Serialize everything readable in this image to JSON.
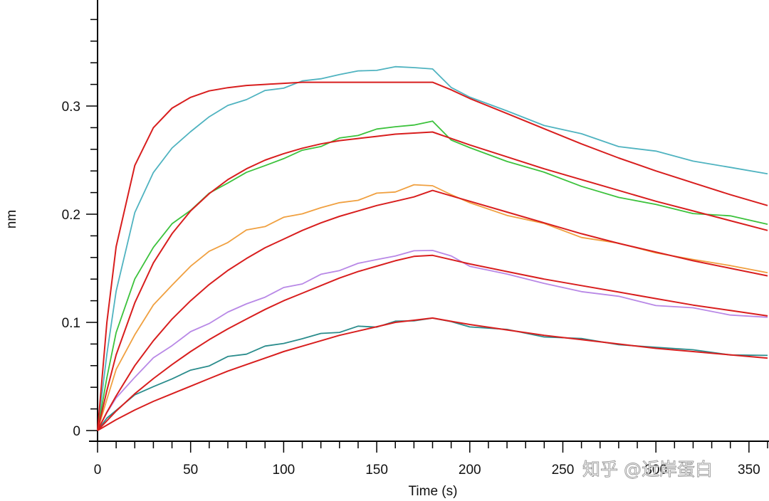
{
  "chart_data": {
    "type": "line",
    "title": "",
    "xlabel": "Time (s)",
    "ylabel": "nm",
    "xlim": [
      0,
      360
    ],
    "ylim": [
      -0.01,
      0.4
    ],
    "x_ticks": [
      0,
      50,
      100,
      150,
      200,
      250,
      300,
      350
    ],
    "x_tick_labels": [
      "0",
      "50",
      "100",
      "150",
      "200",
      "250",
      "300",
      "350"
    ],
    "y_ticks": [
      0,
      0.1,
      0.2,
      0.3
    ],
    "y_tick_labels": [
      "0",
      "0.1",
      "0.2",
      "0.3"
    ],
    "association_end_s": 180,
    "grid": false,
    "legend": "none",
    "series": [
      {
        "name": "measured-1",
        "role": "measured",
        "color": "#4fb3c0",
        "x": [
          0,
          5,
          10,
          20,
          30,
          40,
          50,
          60,
          70,
          80,
          90,
          100,
          110,
          120,
          130,
          140,
          150,
          160,
          170,
          180,
          190,
          200,
          220,
          240,
          260,
          280,
          300,
          320,
          340,
          360
        ],
        "y": [
          0,
          0.07,
          0.13,
          0.2,
          0.24,
          0.26,
          0.277,
          0.29,
          0.3,
          0.307,
          0.313,
          0.318,
          0.322,
          0.326,
          0.329,
          0.332,
          0.334,
          0.335,
          0.337,
          0.333,
          0.318,
          0.308,
          0.295,
          0.283,
          0.273,
          0.264,
          0.257,
          0.25,
          0.243,
          0.237
        ]
      },
      {
        "name": "measured-2",
        "role": "measured",
        "color": "#3cc23c",
        "x": [
          0,
          5,
          10,
          20,
          30,
          40,
          50,
          60,
          70,
          80,
          90,
          100,
          110,
          120,
          130,
          140,
          150,
          160,
          170,
          180,
          190,
          200,
          220,
          240,
          260,
          280,
          300,
          320,
          340,
          360
        ],
        "y": [
          0,
          0.05,
          0.09,
          0.14,
          0.17,
          0.19,
          0.205,
          0.218,
          0.23,
          0.238,
          0.245,
          0.252,
          0.258,
          0.264,
          0.269,
          0.274,
          0.278,
          0.281,
          0.283,
          0.285,
          0.27,
          0.26,
          0.25,
          0.238,
          0.226,
          0.216,
          0.208,
          0.202,
          0.197,
          0.192
        ]
      },
      {
        "name": "measured-3",
        "role": "measured",
        "color": "#f0a040",
        "x": [
          0,
          5,
          10,
          20,
          30,
          40,
          50,
          60,
          70,
          80,
          90,
          100,
          110,
          120,
          130,
          140,
          150,
          160,
          170,
          180,
          190,
          200,
          220,
          240,
          260,
          280,
          300,
          320,
          340,
          360
        ],
        "y": [
          0,
          0.03,
          0.055,
          0.09,
          0.115,
          0.135,
          0.152,
          0.165,
          0.175,
          0.184,
          0.19,
          0.196,
          0.201,
          0.206,
          0.21,
          0.214,
          0.218,
          0.222,
          0.226,
          0.227,
          0.218,
          0.21,
          0.2,
          0.19,
          0.18,
          0.172,
          0.165,
          0.158,
          0.152,
          0.147
        ]
      },
      {
        "name": "measured-4",
        "role": "measured",
        "color": "#b888e6",
        "x": [
          0,
          5,
          10,
          20,
          30,
          40,
          50,
          60,
          70,
          80,
          90,
          100,
          110,
          120,
          130,
          140,
          150,
          160,
          170,
          180,
          190,
          200,
          220,
          240,
          260,
          280,
          300,
          320,
          340,
          360
        ],
        "y": [
          0,
          0.016,
          0.03,
          0.05,
          0.066,
          0.08,
          0.09,
          0.1,
          0.109,
          0.117,
          0.124,
          0.131,
          0.137,
          0.143,
          0.149,
          0.154,
          0.158,
          0.162,
          0.165,
          0.168,
          0.16,
          0.153,
          0.144,
          0.136,
          0.129,
          0.123,
          0.117,
          0.112,
          0.108,
          0.104
        ]
      },
      {
        "name": "measured-5",
        "role": "measured",
        "color": "#2a8c8c",
        "x": [
          0,
          5,
          10,
          20,
          30,
          40,
          50,
          60,
          70,
          80,
          90,
          100,
          110,
          120,
          130,
          140,
          150,
          160,
          170,
          180,
          190,
          200,
          220,
          240,
          260,
          280,
          300,
          320,
          340,
          360
        ],
        "y": [
          0,
          0.01,
          0.02,
          0.032,
          0.041,
          0.048,
          0.055,
          0.061,
          0.067,
          0.072,
          0.077,
          0.081,
          0.085,
          0.089,
          0.092,
          0.095,
          0.097,
          0.1,
          0.102,
          0.104,
          0.1,
          0.097,
          0.092,
          0.088,
          0.084,
          0.08,
          0.077,
          0.074,
          0.071,
          0.068
        ]
      },
      {
        "name": "fit-1",
        "role": "fit",
        "color": "#d81e1e",
        "x": [
          0,
          5,
          10,
          20,
          30,
          40,
          50,
          60,
          70,
          80,
          90,
          100,
          110,
          120,
          130,
          140,
          150,
          160,
          170,
          180,
          190,
          200,
          220,
          240,
          260,
          280,
          300,
          320,
          340,
          360
        ],
        "y": [
          0,
          0.1,
          0.17,
          0.245,
          0.28,
          0.298,
          0.308,
          0.314,
          0.317,
          0.319,
          0.32,
          0.321,
          0.322,
          0.322,
          0.322,
          0.322,
          0.322,
          0.322,
          0.322,
          0.322,
          0.315,
          0.307,
          0.293,
          0.279,
          0.265,
          0.252,
          0.24,
          0.229,
          0.218,
          0.208
        ]
      },
      {
        "name": "fit-2",
        "role": "fit",
        "color": "#d81e1e",
        "x": [
          0,
          5,
          10,
          20,
          30,
          40,
          50,
          60,
          70,
          80,
          90,
          100,
          110,
          120,
          130,
          140,
          150,
          160,
          170,
          180,
          190,
          200,
          220,
          240,
          260,
          280,
          300,
          320,
          340,
          360
        ],
        "y": [
          0,
          0.037,
          0.07,
          0.118,
          0.155,
          0.182,
          0.203,
          0.219,
          0.232,
          0.242,
          0.25,
          0.256,
          0.261,
          0.265,
          0.268,
          0.27,
          0.272,
          0.274,
          0.275,
          0.276,
          0.27,
          0.264,
          0.253,
          0.242,
          0.232,
          0.222,
          0.212,
          0.203,
          0.194,
          0.185
        ]
      },
      {
        "name": "fit-3",
        "role": "fit",
        "color": "#d81e1e",
        "x": [
          0,
          5,
          10,
          20,
          30,
          40,
          50,
          60,
          70,
          80,
          90,
          100,
          110,
          120,
          130,
          140,
          150,
          160,
          170,
          180,
          190,
          200,
          220,
          240,
          260,
          280,
          300,
          320,
          340,
          360
        ],
        "y": [
          0,
          0.017,
          0.032,
          0.06,
          0.083,
          0.103,
          0.12,
          0.135,
          0.148,
          0.159,
          0.169,
          0.177,
          0.185,
          0.192,
          0.198,
          0.203,
          0.208,
          0.212,
          0.216,
          0.222,
          0.217,
          0.212,
          0.202,
          0.192,
          0.182,
          0.173,
          0.165,
          0.157,
          0.15,
          0.143
        ]
      },
      {
        "name": "fit-4",
        "role": "fit",
        "color": "#d81e1e",
        "x": [
          0,
          5,
          10,
          20,
          30,
          40,
          50,
          60,
          70,
          80,
          90,
          100,
          110,
          120,
          130,
          140,
          150,
          160,
          170,
          180,
          190,
          200,
          220,
          240,
          260,
          280,
          300,
          320,
          340,
          360
        ],
        "y": [
          0,
          0.009,
          0.018,
          0.034,
          0.048,
          0.061,
          0.073,
          0.084,
          0.094,
          0.103,
          0.112,
          0.12,
          0.127,
          0.134,
          0.141,
          0.147,
          0.152,
          0.157,
          0.161,
          0.162,
          0.158,
          0.154,
          0.147,
          0.14,
          0.134,
          0.128,
          0.122,
          0.116,
          0.111,
          0.106
        ]
      },
      {
        "name": "fit-5",
        "role": "fit",
        "color": "#d81e1e",
        "x": [
          0,
          5,
          10,
          20,
          30,
          40,
          50,
          60,
          70,
          80,
          90,
          100,
          110,
          120,
          130,
          140,
          150,
          160,
          170,
          180,
          190,
          200,
          220,
          240,
          260,
          280,
          300,
          320,
          340,
          360
        ],
        "y": [
          0,
          0.005,
          0.01,
          0.019,
          0.027,
          0.034,
          0.041,
          0.048,
          0.055,
          0.061,
          0.067,
          0.073,
          0.078,
          0.083,
          0.088,
          0.092,
          0.096,
          0.1,
          0.102,
          0.104,
          0.101,
          0.098,
          0.093,
          0.088,
          0.084,
          0.08,
          0.076,
          0.073,
          0.07,
          0.067
        ]
      }
    ]
  },
  "watermark": {
    "text": "知乎 @近岸蛋白"
  }
}
